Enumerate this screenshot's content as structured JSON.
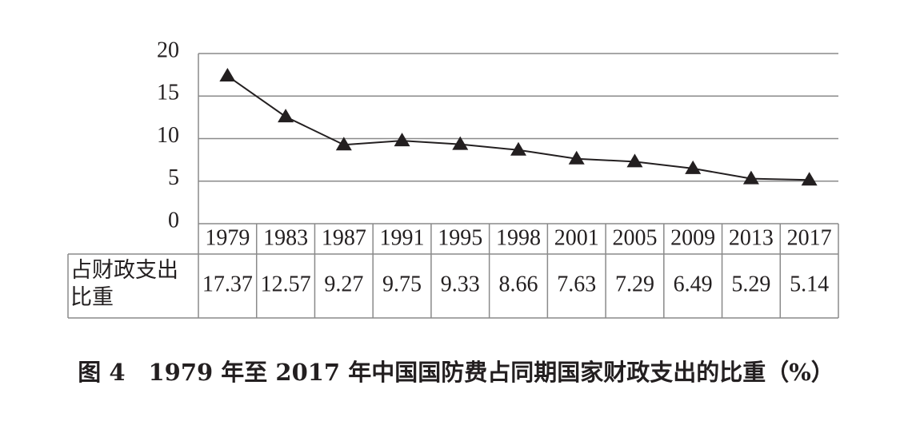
{
  "chart_data": {
    "type": "line",
    "caption": "图 4　1979 年至 2017 年中国国防费占同期国家财政支出的比重（%）",
    "row_label": "占财政支出比重",
    "categories": [
      "1979",
      "1983",
      "1987",
      "1991",
      "1995",
      "1998",
      "2001",
      "2005",
      "2009",
      "2013",
      "2017"
    ],
    "values": [
      17.37,
      12.57,
      9.27,
      9.75,
      9.33,
      8.66,
      7.63,
      7.29,
      6.49,
      5.29,
      5.14
    ],
    "color": "#231f20",
    "ylim": [
      0,
      20
    ],
    "yticks": [
      0,
      5,
      10,
      15,
      20
    ],
    "grid": true
  }
}
